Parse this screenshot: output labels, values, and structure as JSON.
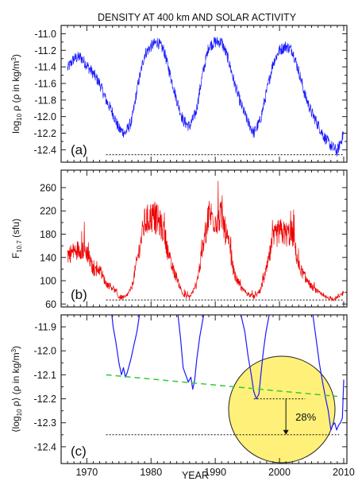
{
  "title": "DENSITY AT 400 km AND SOLAR ACTIVITY",
  "xlabel": "YEAR",
  "x_ticks": [
    1970,
    1980,
    1990,
    2000,
    2010
  ],
  "colors": {
    "density": "#1a1aff",
    "f107": "#ee0000",
    "trend": "#33cc33",
    "highlight": "#fff07a",
    "frame": "#222222"
  },
  "chart_data": [
    {
      "type": "line",
      "panel_label": "(a)",
      "ylabel_main": "log",
      "ylabel_sub": "10",
      "ylabel_rest": " ρ (ρ in kg/m",
      "ylabel_sup": "3",
      "ylabel_end": ")",
      "xlim": [
        1966,
        2010.5
      ],
      "ylim": [
        -12.55,
        -10.9
      ],
      "y_ticks": [
        "-11.0",
        "-11.2",
        "-11.4",
        "-11.6",
        "-11.8",
        "-12.0",
        "-12.2",
        "-12.4"
      ],
      "y_tick_values": [
        -11.0,
        -11.2,
        -11.4,
        -11.6,
        -11.8,
        -12.0,
        -12.2,
        -12.4
      ],
      "reference_line": {
        "y": -12.46,
        "x_start": 1973,
        "x_end": 2010
      },
      "series": [
        {
          "x": [
            1967,
            1968,
            1969,
            1970,
            1971,
            1972,
            1973,
            1974,
            1975,
            1976,
            1977,
            1978,
            1979,
            1980,
            1981,
            1982,
            1983,
            1984,
            1985,
            1986,
            1987,
            1988,
            1989,
            1990,
            1991,
            1992,
            1993,
            1994,
            1995,
            1996,
            1997,
            1998,
            1999,
            2000,
            2001,
            2002,
            2003,
            2004,
            2005,
            2006,
            2007,
            2008,
            2009,
            2010
          ],
          "values": [
            -11.42,
            -11.3,
            -11.28,
            -11.38,
            -11.48,
            -11.6,
            -11.8,
            -11.95,
            -12.15,
            -12.2,
            -12.05,
            -11.6,
            -11.25,
            -11.15,
            -11.1,
            -11.2,
            -11.5,
            -11.8,
            -12.05,
            -12.12,
            -11.95,
            -11.5,
            -11.15,
            -11.1,
            -11.1,
            -11.3,
            -11.6,
            -11.85,
            -12.05,
            -12.2,
            -12.05,
            -11.7,
            -11.35,
            -11.2,
            -11.15,
            -11.2,
            -11.45,
            -11.75,
            -11.95,
            -12.1,
            -12.25,
            -12.35,
            -12.42,
            -12.2
          ]
        }
      ]
    },
    {
      "type": "line",
      "panel_label": "(b)",
      "ylabel_main": "F",
      "ylabel_sub": "10.7",
      "ylabel_rest": " (sfu)",
      "ylabel_sup": "",
      "ylabel_end": "",
      "xlim": [
        1966,
        2010.5
      ],
      "ylim": [
        55,
        290
      ],
      "y_ticks": [
        "60",
        "100",
        "140",
        "180",
        "220",
        "260"
      ],
      "y_tick_values": [
        60,
        100,
        140,
        180,
        220,
        260
      ],
      "reference_line": {
        "y": 67,
        "x_start": 1973,
        "x_end": 2010
      },
      "series": [
        {
          "x": [
            1967,
            1968,
            1969,
            1970,
            1971,
            1972,
            1973,
            1974,
            1975,
            1976,
            1977,
            1978,
            1979,
            1980,
            1981,
            1982,
            1983,
            1984,
            1985,
            1986,
            1987,
            1988,
            1989,
            1990,
            1991,
            1992,
            1993,
            1994,
            1995,
            1996,
            1997,
            1998,
            1999,
            2000,
            2001,
            2002,
            2003,
            2004,
            2005,
            2006,
            2007,
            2008,
            2009,
            2010
          ],
          "values": [
            145,
            150,
            155,
            150,
            118,
            120,
            95,
            88,
            72,
            71,
            88,
            145,
            200,
            210,
            205,
            185,
            130,
            105,
            75,
            72,
            90,
            150,
            215,
            205,
            210,
            165,
            110,
            88,
            78,
            72,
            82,
            120,
            170,
            185,
            180,
            180,
            125,
            105,
            90,
            80,
            72,
            69,
            70,
            80
          ]
        }
      ]
    },
    {
      "type": "line",
      "panel_label": "(c)",
      "ylabel_main": "⟨log",
      "ylabel_sub": "10",
      "ylabel_rest": " ρ⟩ (ρ in kg/m",
      "ylabel_sup": "3",
      "ylabel_end": ")",
      "xlim": [
        1966,
        2010.5
      ],
      "ylim": [
        -12.47,
        -11.85
      ],
      "y_ticks": [
        "-11.9",
        "-12.0",
        "-12.1",
        "-12.2",
        "-12.3",
        "-12.4"
      ],
      "y_tick_values": [
        -11.9,
        -12.0,
        -12.1,
        -12.2,
        -12.3,
        -12.4
      ],
      "reference_line": {
        "y": -12.35,
        "x_start": 1973,
        "x_end": 2009.3
      },
      "trend_line": {
        "x": [
          1973,
          2009
        ],
        "y": [
          -12.1,
          -12.19
        ]
      },
      "annotation": {
        "text": "28%",
        "x": 2001,
        "y_top": -12.2,
        "y_bottom": -12.35,
        "x_start": 1996,
        "x_end": 2004
      },
      "series": [
        {
          "x": [
            1973.9,
            1974.1,
            1974.5,
            1975.0,
            1975.4,
            1975.7,
            1976.0,
            1976.3,
            1976.6,
            1976.9,
            1977.3,
            1977.8,
            1978.2
          ],
          "values": [
            -11.85,
            -11.9,
            -11.96,
            -12.05,
            -12.1,
            -12.07,
            -12.11,
            -12.09,
            -12.06,
            -12.03,
            -11.98,
            -11.92,
            -11.85
          ]
        },
        {
          "x": [
            1984.2,
            1984.6,
            1985.0,
            1985.4,
            1985.8,
            1986.2,
            1986.5,
            1986.8,
            1987.1,
            1987.6,
            1988.2
          ],
          "values": [
            -11.85,
            -11.95,
            -12.07,
            -12.1,
            -12.13,
            -12.11,
            -12.16,
            -12.12,
            -12.04,
            -11.94,
            -11.85
          ]
        },
        {
          "x": [
            1994.0,
            1994.6,
            1995.1,
            1995.6,
            1996.0,
            1996.4,
            1996.8,
            1997.1,
            1997.5,
            1997.9,
            1998.4
          ],
          "values": [
            -11.85,
            -11.92,
            -12.02,
            -12.1,
            -12.17,
            -12.2,
            -12.18,
            -12.1,
            -12.0,
            -11.92,
            -11.85
          ]
        },
        {
          "x": [
            2005.2,
            2005.7,
            2006.2,
            2006.7,
            2007.2,
            2007.6,
            2008.0,
            2008.3,
            2008.6,
            2008.9,
            2009.2,
            2009.5,
            2009.8,
            2010.0
          ],
          "values": [
            -11.85,
            -11.95,
            -12.05,
            -12.13,
            -12.2,
            -12.25,
            -12.33,
            -12.31,
            -12.3,
            -12.33,
            -12.31,
            -12.3,
            -12.28,
            -12.12
          ]
        }
      ]
    }
  ]
}
